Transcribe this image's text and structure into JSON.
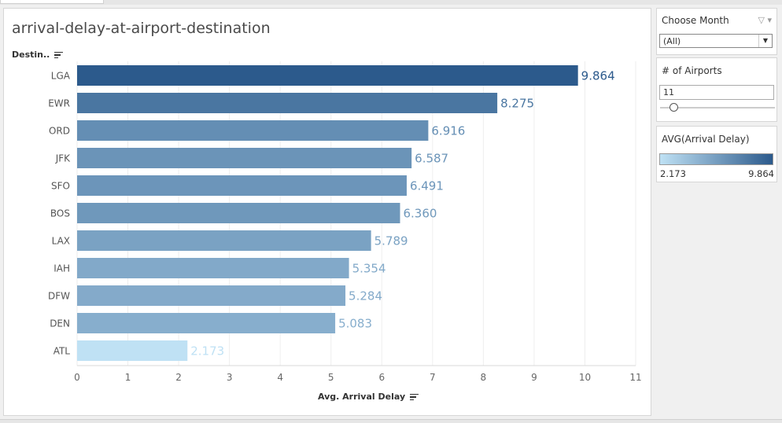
{
  "chart_title": "arrival-delay-at-airport-destination",
  "row_header": "Destin..",
  "filters": {
    "month": {
      "title": "Choose Month",
      "value": "(All)"
    },
    "airports": {
      "title": "# of Airports",
      "value": "11",
      "level": 11
    }
  },
  "legend": {
    "title": "AVG(Arrival Delay)",
    "min": "2.173",
    "max": "9.864",
    "color_low": "#bfe1f4",
    "color_high": "#2c5a8c"
  },
  "chart_data": {
    "type": "bar",
    "orientation": "horizontal",
    "xlabel": "Avg. Arrival Delay",
    "categories": [
      "LGA",
      "EWR",
      "ORD",
      "JFK",
      "SFO",
      "BOS",
      "LAX",
      "IAH",
      "DFW",
      "DEN",
      "ATL"
    ],
    "values": [
      9.864,
      8.275,
      6.916,
      6.587,
      6.491,
      6.36,
      5.789,
      5.354,
      5.284,
      5.083,
      2.173
    ],
    "labels": [
      "9.864",
      "8.275",
      "6.916",
      "6.587",
      "6.491",
      "6.360",
      "5.789",
      "5.354",
      "5.284",
      "5.083",
      "2.173"
    ],
    "xlim": [
      0,
      11
    ],
    "xticks": [
      "0",
      "1",
      "2",
      "3",
      "4",
      "5",
      "6",
      "7",
      "8",
      "9",
      "10",
      "11"
    ],
    "grid": true
  }
}
